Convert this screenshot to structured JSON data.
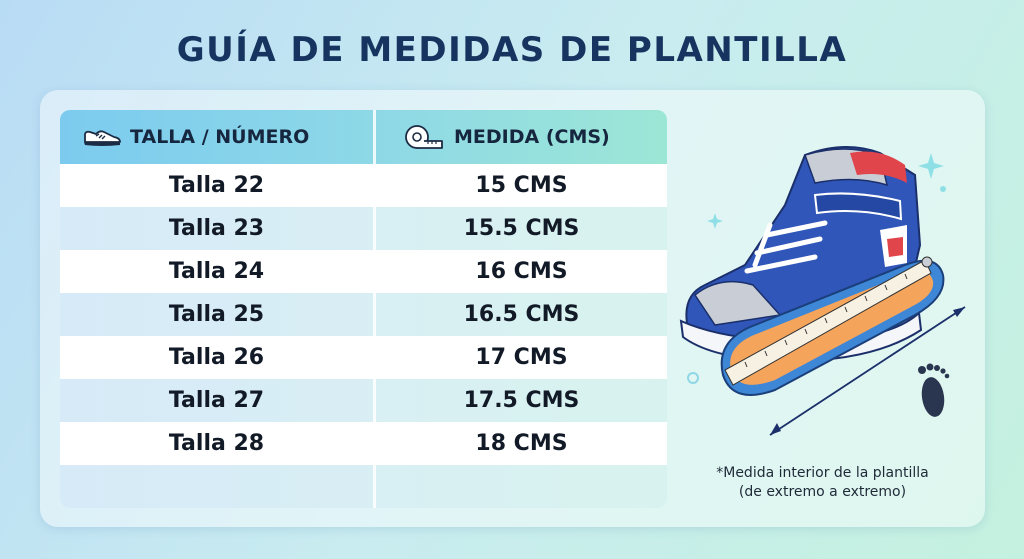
{
  "title": "GUÍA DE MEDIDAS DE PLANTILLA",
  "table": {
    "headers": {
      "size": "TALLA / NÚMERO",
      "size_icon": "sneaker-icon",
      "measure": "MEDIDA (CMS)",
      "measure_icon": "measuring-tape-icon"
    },
    "rows": [
      {
        "size": "Talla 22",
        "measure": "15 CMS"
      },
      {
        "size": "Talla 23",
        "measure": "15.5 CMS"
      },
      {
        "size": "Talla 24",
        "measure": "16 CMS"
      },
      {
        "size": "Talla 25",
        "measure": "16.5 CMS"
      },
      {
        "size": "Talla 26",
        "measure": "17 CMS"
      },
      {
        "size": "Talla 27",
        "measure": "17.5 CMS"
      },
      {
        "size": "Talla 28",
        "measure": "18 CMS"
      },
      {
        "size": "",
        "measure": ""
      }
    ]
  },
  "illustration": {
    "icons": [
      "high-top-sneaker-icon",
      "insole-ruler-icon",
      "footprint-icon",
      "sparkle-icon"
    ]
  },
  "footnote": {
    "line1": "*Medida interior de la plantilla",
    "line2": "(de extremo a extremo)"
  },
  "colors": {
    "title": "#16345f",
    "header_start": "#7ccbef",
    "header_end": "#9ce6d6",
    "shoe_blue": "#2f56b8",
    "shoe_red": "#e0454b",
    "insole_orange": "#f5a45c"
  }
}
